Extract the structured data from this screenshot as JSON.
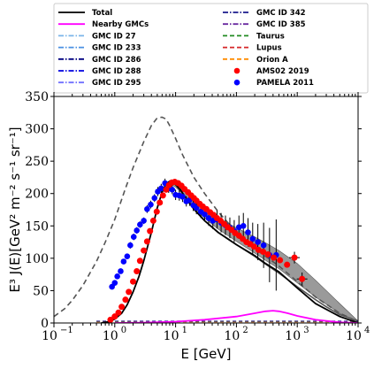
{
  "chart_data": {
    "type": "line",
    "xscale": "log",
    "xlim": [
      0.1,
      10000
    ],
    "ylim": [
      0,
      350
    ],
    "xlabel": "E [GeV]",
    "ylabel": "E³ J(E)[GeV² m⁻² s⁻¹ sr⁻¹]",
    "xticks": [
      0.1,
      1,
      10,
      100,
      1000,
      10000
    ],
    "xtick_labels": [
      "10",
      "10",
      "10",
      "10",
      "10",
      "10"
    ],
    "xtick_exponents": [
      "−1",
      "0",
      "1",
      "2",
      "3",
      "4"
    ],
    "yticks": [
      0,
      50,
      100,
      150,
      200,
      250,
      300,
      350
    ],
    "ytick_labels": [
      "0",
      "50",
      "100",
      "150",
      "200",
      "250",
      "300",
      "350"
    ],
    "legend_placement": "above plot, two columns",
    "legend_left": [
      {
        "label": "Total",
        "color": "#000000",
        "style": "solid"
      },
      {
        "label": "Nearby GMCs",
        "color": "#ff00ff",
        "style": "solid"
      },
      {
        "label": "GMC ID 27",
        "color": "#7ab4e8",
        "style": "dashdot"
      },
      {
        "label": "GMC ID 233",
        "color": "#4a90e2",
        "style": "dashdot"
      },
      {
        "label": "GMC ID 286",
        "color": "#000080",
        "style": "dashdot"
      },
      {
        "label": "GMC ID 288",
        "color": "#0000e0",
        "style": "dashdot"
      },
      {
        "label": "GMC ID 295",
        "color": "#7070ff",
        "style": "dashdot"
      }
    ],
    "legend_right": [
      {
        "label": "GMC ID 342",
        "color": "#1a1a8c",
        "style": "dashdot"
      },
      {
        "label": "GMC ID 385",
        "color": "#6a2aa0",
        "style": "dashdot"
      },
      {
        "label": "Taurus",
        "color": "#228b22",
        "style": "dashed"
      },
      {
        "label": "Lupus",
        "color": "#d62728",
        "style": "dashed"
      },
      {
        "label": "Orion A",
        "color": "#ff8c00",
        "style": "dashed"
      },
      {
        "label": "AMS02 2019",
        "color": "#ff0000",
        "style": "marker"
      },
      {
        "label": "PAMELA 2011",
        "color": "#0000ff",
        "style": "marker"
      }
    ],
    "series": [
      {
        "name": "Total",
        "color": "#000000",
        "x": [
          0.6,
          0.8,
          1,
          1.3,
          1.6,
          2,
          2.5,
          3,
          4,
          5,
          6,
          7,
          8,
          10,
          12,
          15,
          20,
          30,
          50,
          100,
          200,
          300,
          500,
          1000,
          2000,
          5000,
          10000
        ],
        "y": [
          0,
          2,
          6,
          15,
          28,
          48,
          72,
          96,
          140,
          178,
          202,
          215,
          219,
          214,
          206,
          192,
          176,
          158,
          140,
          121,
          104,
          92,
          79,
          54,
          30,
          10,
          0
        ]
      },
      {
        "name": "Nearby GMCs",
        "color": "#ff00ff",
        "x": [
          1,
          3,
          10,
          30,
          100,
          200,
          300,
          400,
          500,
          700,
          1000,
          2000,
          5000,
          10000
        ],
        "y": [
          0,
          0.5,
          2,
          5,
          10,
          15,
          18,
          19,
          18,
          15,
          11,
          5,
          1,
          0
        ]
      }
    ],
    "other_curves": [
      {
        "color": "#555555",
        "style": "dashed",
        "x": [
          0.1,
          0.15,
          0.2,
          0.3,
          0.5,
          0.7,
          1,
          1.5,
          2,
          3,
          4,
          5,
          6,
          7,
          8,
          10,
          13,
          20,
          30,
          50,
          100,
          200,
          500,
          1000,
          2000,
          5000,
          10000
        ],
        "y": [
          10,
          22,
          35,
          58,
          95,
          125,
          160,
          208,
          240,
          280,
          305,
          317,
          318,
          315,
          305,
          285,
          260,
          225,
          200,
          172,
          140,
          115,
          88,
          64,
          40,
          15,
          2
        ]
      },
      {
        "color": "#555555",
        "style": "solid",
        "x": [
          10,
          20,
          30,
          50,
          100,
          200,
          300,
          500,
          700,
          1000,
          2000,
          3000,
          5000,
          10000
        ],
        "y": [
          214,
          176,
          158,
          140,
          121,
          103,
          91,
          77,
          67,
          56,
          36,
          25,
          13,
          3
        ]
      }
    ],
    "band": {
      "color": "#888888",
      "x": [
        8,
        10,
        15,
        20,
        30,
        50,
        100,
        200,
        300,
        500,
        1000,
        2000,
        5000,
        10000
      ],
      "upper": [
        220,
        218,
        205,
        192,
        178,
        163,
        147,
        133,
        124,
        112,
        92,
        66,
        30,
        3
      ],
      "lower": [
        215,
        210,
        194,
        178,
        162,
        145,
        126,
        108,
        97,
        84,
        62,
        40,
        15,
        0
      ]
    },
    "amsdata": {
      "name": "AMS02 2019",
      "color": "#ff0000",
      "x": [
        0.85,
        1,
        1.15,
        1.3,
        1.5,
        1.7,
        2,
        2.3,
        2.6,
        3,
        3.4,
        3.8,
        4.3,
        4.9,
        5.5,
        6.2,
        7,
        7.8,
        8.7,
        9.7,
        11,
        12.5,
        14,
        16,
        18,
        20,
        22,
        25,
        28,
        32,
        37,
        42,
        48,
        55,
        63,
        72,
        83,
        95,
        110,
        127,
        146,
        168,
        195,
        230,
        275,
        330,
        410,
        520,
        680,
        900,
        1200
      ],
      "y": [
        5,
        10,
        16,
        25,
        36,
        48,
        64,
        80,
        96,
        112,
        126,
        142,
        158,
        172,
        186,
        197,
        206,
        213,
        217,
        218,
        216,
        212,
        207,
        202,
        197,
        193,
        189,
        184,
        180,
        176,
        171,
        167,
        162,
        158,
        153,
        148,
        144,
        139,
        135,
        130,
        125,
        122,
        118,
        113,
        110,
        106,
        101,
        97,
        90,
        101,
        68
      ],
      "err": [
        0,
        0,
        0,
        0,
        0,
        0,
        0,
        0,
        0,
        0,
        0,
        0,
        0,
        0,
        0,
        0,
        0,
        0,
        0,
        0,
        0,
        0,
        0,
        0,
        0,
        0,
        0,
        0,
        0,
        0,
        0,
        0,
        0,
        0,
        0,
        0,
        0,
        0,
        0,
        0,
        0,
        0,
        0,
        0,
        0,
        0,
        0,
        0,
        0,
        9,
        10
      ]
    },
    "pameladata": {
      "name": "PAMELA 2011",
      "color": "#0000ff",
      "x": [
        0.9,
        1,
        1.1,
        1.25,
        1.4,
        1.6,
        1.8,
        2.05,
        2.3,
        2.6,
        3,
        3.4,
        3.9,
        4.5,
        5.1,
        5.8,
        6.7,
        7.7,
        8.8,
        10,
        11.5,
        13,
        15,
        17,
        19.5,
        22,
        26,
        30,
        35,
        41,
        48,
        56,
        66,
        78,
        92,
        110,
        130,
        155,
        185,
        225,
        280,
        350,
        450
      ],
      "y": [
        56,
        62,
        72,
        80,
        95,
        103,
        120,
        133,
        143,
        152,
        158,
        176,
        183,
        193,
        203,
        208,
        216,
        208,
        206,
        198,
        197,
        195,
        188,
        190,
        182,
        178,
        172,
        168,
        162,
        158,
        160,
        155,
        151,
        147,
        142,
        148,
        150,
        140,
        130,
        125,
        120,
        105,
        105
      ],
      "err": [
        0,
        3,
        3,
        4,
        4,
        4,
        5,
        5,
        5,
        5,
        5,
        6,
        6,
        6,
        7,
        7,
        7,
        7,
        7,
        8,
        8,
        8,
        8,
        9,
        9,
        10,
        10,
        11,
        12,
        13,
        14,
        15,
        15,
        16,
        17,
        18,
        20,
        22,
        25,
        28,
        35,
        42,
        55
      ]
    }
  }
}
